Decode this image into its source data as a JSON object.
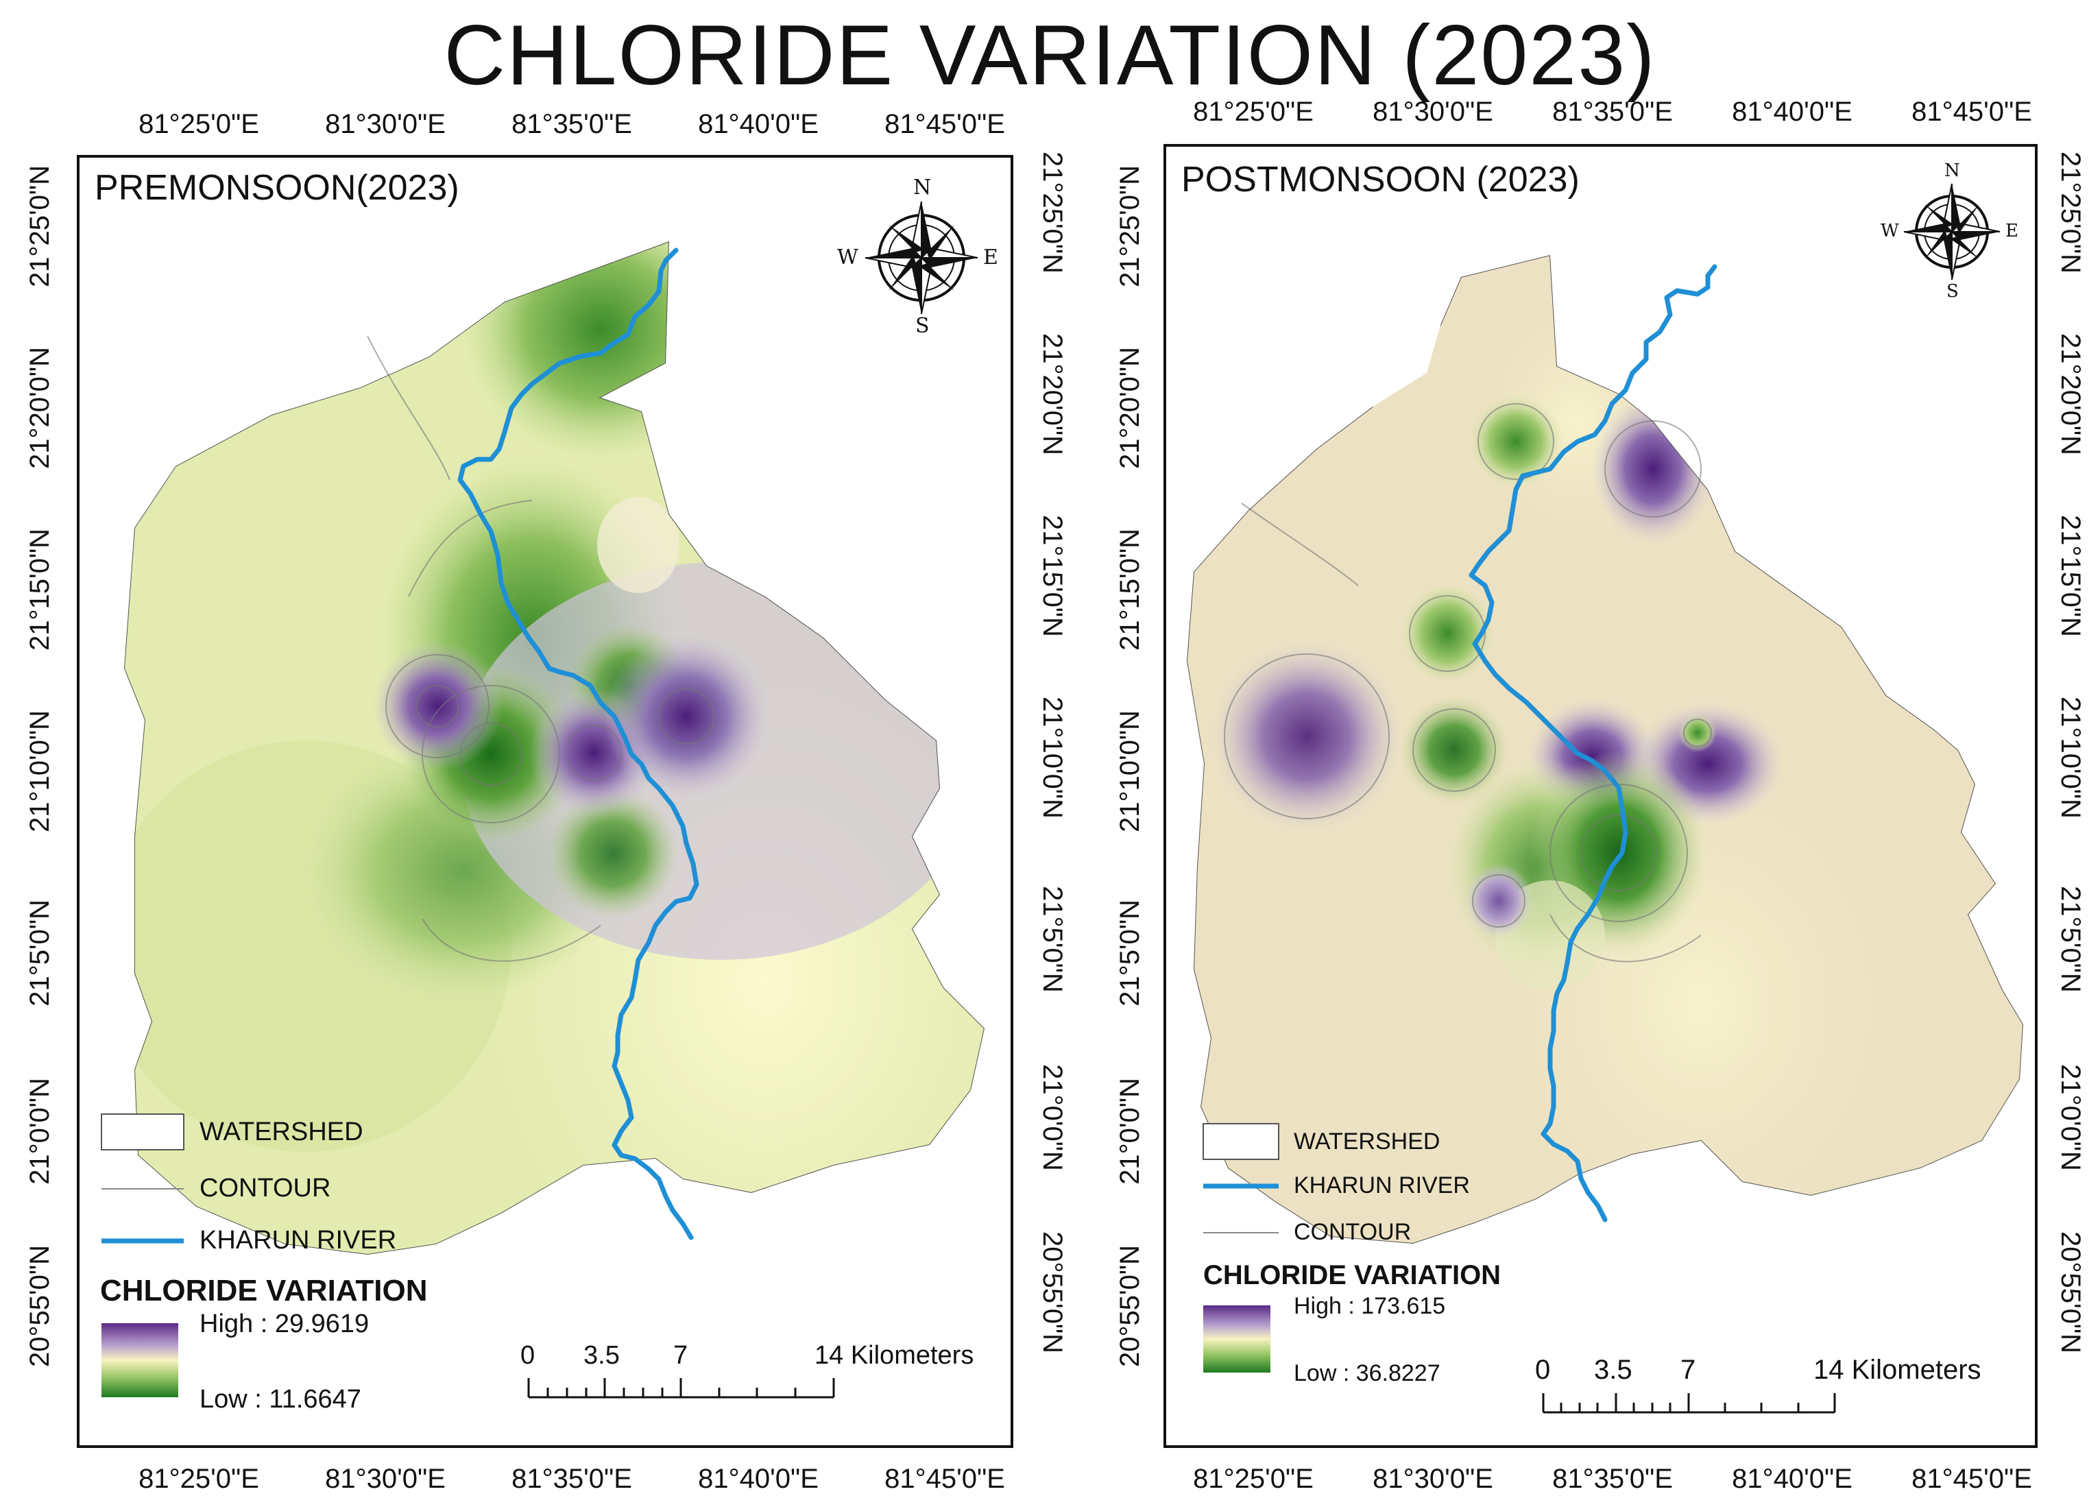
{
  "figure": {
    "title": "CHLORIDE VARIATION (2023)"
  },
  "panels": {
    "pre": {
      "title": "PREMONSOON(2023)",
      "lon_ticks": [
        "81°25'0\"E",
        "81°30'0\"E",
        "81°35'0\"E",
        "81°40'0\"E",
        "81°45'0\"E"
      ],
      "lat_ticks": [
        "21°25'0\"N",
        "21°20'0\"N",
        "21°15'0\"N",
        "21°10'0\"N",
        "21°5'0\"N",
        "21°0'0\"N",
        "20°55'0\"N"
      ],
      "legend": {
        "watershed": "WATERSHED",
        "contour": "CONTOUR",
        "river": "KHARUN RIVER",
        "variation_title": "CHLORIDE VARIATION",
        "high": "High : 29.9619",
        "low": "Low : 11.6647"
      },
      "scale": {
        "labels": [
          "0",
          "3.5",
          "7",
          "14 Kilometers"
        ]
      },
      "compass": {
        "n": "N",
        "s": "S",
        "e": "E",
        "w": "W"
      }
    },
    "post": {
      "title": "POSTMONSOON (2023)",
      "lon_ticks": [
        "81°25'0\"E",
        "81°30'0\"E",
        "81°35'0\"E",
        "81°40'0\"E",
        "81°45'0\"E"
      ],
      "lat_ticks": [
        "21°25'0\"N",
        "21°20'0\"N",
        "21°15'0\"N",
        "21°10'0\"N",
        "21°5'0\"N",
        "21°0'0\"N",
        "20°55'0\"N"
      ],
      "legend": {
        "watershed": "WATERSHED",
        "river": "KHARUN RIVER",
        "contour": "CONTOUR",
        "variation_title": "CHLORIDE VARIATION",
        "high": "High : 173.615",
        "low": "Low : 36.8227"
      },
      "scale": {
        "labels": [
          "0",
          "3.5",
          "7",
          "14 Kilometers"
        ]
      },
      "compass": {
        "n": "N",
        "s": "S",
        "e": "E",
        "w": "W"
      }
    }
  },
  "colors": {
    "river": "#1f8fd6",
    "high": "#5b2a86",
    "mid": "#f7f2c0",
    "low": "#1f7a1f",
    "post_base": "#ece2c2",
    "pre_base": "#e6ecb4"
  }
}
